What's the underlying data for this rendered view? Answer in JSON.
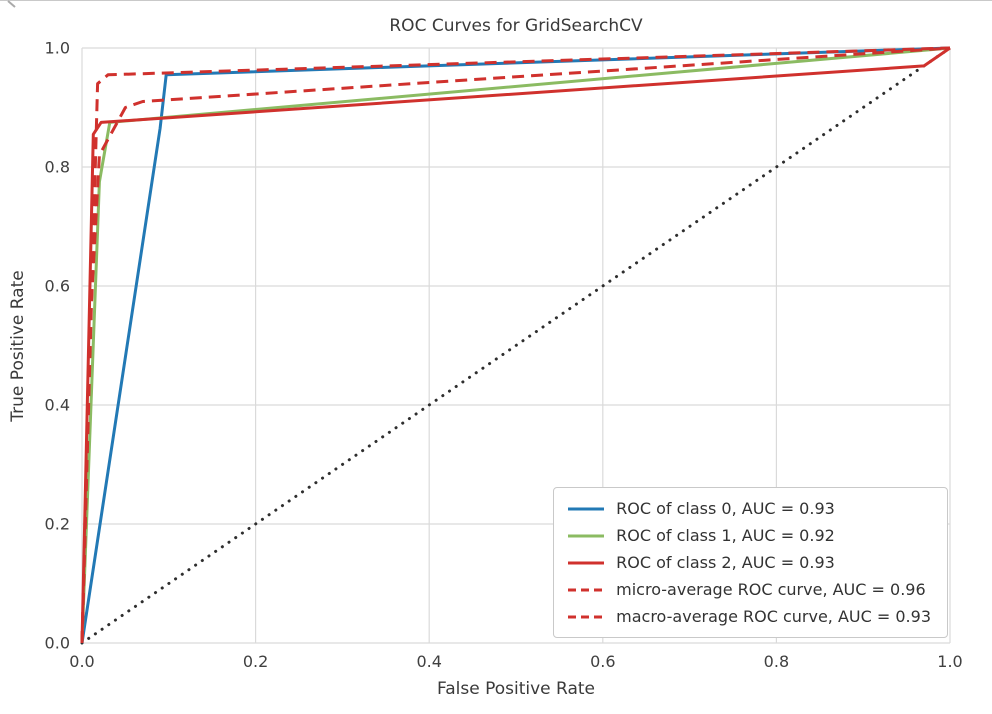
{
  "window": {
    "background": "#ffffff"
  },
  "chart_data": {
    "type": "line",
    "title": "ROC Curves for GridSearchCV",
    "xlabel": "False Positive Rate",
    "ylabel": "True Positive Rate",
    "xlim": [
      0.0,
      1.0
    ],
    "ylim": [
      0.0,
      1.0
    ],
    "grid": true,
    "grid_color": "#dadada",
    "text_color": "#404040",
    "legend_position": "lower right",
    "x_tick_values": [
      0.0,
      0.2,
      0.4,
      0.6,
      0.8,
      1.0
    ],
    "x_tick_labels": [
      "0.0",
      "0.2",
      "0.4",
      "0.6",
      "0.8",
      "1.0"
    ],
    "y_tick_values": [
      0.0,
      0.2,
      0.4,
      0.6,
      0.8,
      1.0
    ],
    "y_tick_labels": [
      "0.0",
      "0.2",
      "0.4",
      "0.6",
      "0.8",
      "1.0"
    ],
    "series": [
      {
        "name": "roc-class-0",
        "label": "ROC of class 0, AUC = 0.93",
        "auc": 0.93,
        "color": "#2279b5",
        "style": "solid",
        "x": [
          0.0,
          0.09,
          0.097,
          1.0
        ],
        "y": [
          0.0,
          0.865,
          0.955,
          1.0
        ]
      },
      {
        "name": "roc-class-1",
        "label": "ROC of class 1, AUC = 0.92",
        "auc": 0.92,
        "color": "#8bbb62",
        "style": "solid",
        "x": [
          0.0,
          0.02,
          0.032,
          1.0
        ],
        "y": [
          0.0,
          0.775,
          0.875,
          1.0
        ]
      },
      {
        "name": "roc-class-2",
        "label": "ROC of class 2, AUC = 0.93",
        "auc": 0.93,
        "color": "#d0312d",
        "style": "solid",
        "x": [
          0.0,
          0.013,
          0.022,
          0.97,
          1.0
        ],
        "y": [
          0.0,
          0.855,
          0.875,
          0.97,
          1.0
        ]
      },
      {
        "name": "micro-average",
        "label": "micro-average ROC curve, AUC = 0.96",
        "auc": 0.96,
        "color": "#d0312d",
        "style": "dashed",
        "x": [
          0.0,
          0.018,
          0.03,
          1.0
        ],
        "y": [
          0.0,
          0.94,
          0.955,
          1.0
        ]
      },
      {
        "name": "macro-average",
        "label": "macro-average ROC curve, AUC = 0.93",
        "auc": 0.93,
        "color": "#d0312d",
        "style": "dashed",
        "x": [
          0.0,
          0.01,
          0.02,
          0.05,
          0.07,
          1.0
        ],
        "y": [
          0.0,
          0.55,
          0.82,
          0.9,
          0.91,
          1.0
        ]
      }
    ],
    "chance_line": {
      "name": "chance-diagonal",
      "color": "#2e2e2e",
      "style": "dotted",
      "x": [
        0.0,
        1.0
      ],
      "y": [
        0.0,
        1.0
      ]
    }
  }
}
